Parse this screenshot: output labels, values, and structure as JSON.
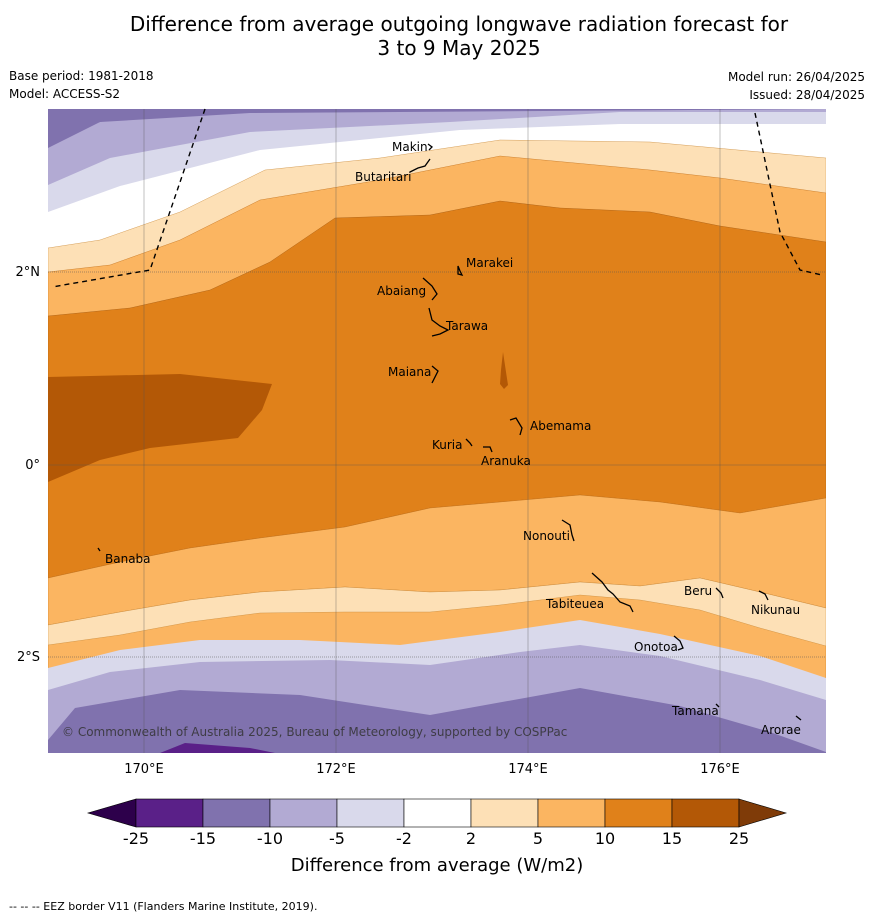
{
  "title_line1": "Difference from average outgoing longwave radiation forecast for",
  "title_line2": "3 to 9 May 2025",
  "base_period": "Base period: 1981-2018",
  "model": "Model: ACCESS-S2",
  "model_run": "Model run: 26/04/2025",
  "issued": "Issued: 28/04/2025",
  "copyright": "© Commonwealth of Australia 2025, Bureau of Meteorology, supported by COSPPac",
  "footer": "--  --  -- EEZ border V11 (Flanders Marine Institute, 2019).",
  "axes": {
    "lon_labels": [
      "170°E",
      "172°E",
      "174°E",
      "176°E"
    ],
    "lat_labels": [
      "2°N",
      "0°",
      "2°S"
    ]
  },
  "places": {
    "makin": "Makin",
    "butaritari": "Butaritari",
    "marakei": "Marakei",
    "abaiang": "Abaiang",
    "tarawa": "Tarawa",
    "maiana": "Maiana",
    "abemama": "Abemama",
    "kuria": "Kuria",
    "aranuka": "Aranuka",
    "nonouti": "Nonouti",
    "banaba": "Banaba",
    "beru": "Beru",
    "tabiteuea": "Tabiteuea",
    "nikunau": "Nikunau",
    "onotoa": "Onotoa",
    "tamana": "Tamana",
    "arorae": "Arorae"
  },
  "colorbar": {
    "title": "Difference from average (W/m2)",
    "ticks": [
      "-25",
      "-15",
      "-10",
      "-5",
      "-2",
      "2",
      "5",
      "10",
      "15",
      "25"
    ],
    "colors": [
      "#5a2088",
      "#8072ae",
      "#b2aad3",
      "#d9d9eb",
      "#ffffff",
      "#fde0b6",
      "#fbb561",
      "#e0811a",
      "#b35806"
    ],
    "extend_low_color": "#2d004b",
    "extend_high_color": "#7f3b08"
  }
}
